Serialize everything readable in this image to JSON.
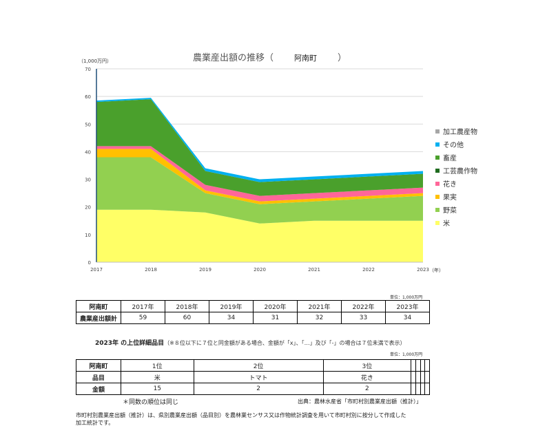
{
  "chart": {
    "title": "農業産出額の推移（",
    "town": "阿南町",
    "title_close": "）",
    "y_unit": "（1,000万円）",
    "x_unit": "（年）"
  },
  "chart_data": {
    "type": "area",
    "stacked": true,
    "x": [
      2017,
      2018,
      2019,
      2020,
      2021,
      2022,
      2023
    ],
    "ylim": [
      0,
      70
    ],
    "yticks": [
      0,
      10,
      20,
      30,
      40,
      50,
      60,
      70
    ],
    "series": [
      {
        "name": "米",
        "color": "#ffff66",
        "values": [
          19,
          19,
          18,
          14,
          15,
          15,
          15
        ]
      },
      {
        "name": "野菜",
        "color": "#92d050",
        "values": [
          19,
          19,
          7,
          7,
          7,
          8,
          9
        ]
      },
      {
        "name": "果実",
        "color": "#ffc000",
        "values": [
          3,
          3,
          1,
          1,
          1,
          1,
          1
        ]
      },
      {
        "name": "花き",
        "color": "#ff6699",
        "values": [
          1,
          1,
          2,
          2,
          2,
          2,
          2
        ]
      },
      {
        "name": "工芸農作物",
        "color": "#1f6b1f",
        "values": [
          0,
          0,
          0,
          0,
          0,
          0,
          0
        ]
      },
      {
        "name": "畜産",
        "color": "#4aa02c",
        "values": [
          16,
          17,
          5,
          5,
          5,
          5,
          5
        ]
      },
      {
        "name": "その他",
        "color": "#00b0f0",
        "values": [
          0.5,
          0.5,
          1,
          1,
          1,
          1,
          1
        ]
      },
      {
        "name": "加工農産物",
        "color": "#a6a6a6",
        "values": [
          0,
          0,
          0,
          0,
          0,
          0,
          0
        ]
      }
    ],
    "legend_position": "right",
    "grid": true
  },
  "table1": {
    "unit_note": "単位：1,000万円",
    "header_label": "阿南町",
    "years": [
      "2017年",
      "2018年",
      "2019年",
      "2020年",
      "2021年",
      "2022年",
      "2023年"
    ],
    "row_label": "農業産出額計",
    "values": [
      "59",
      "60",
      "34",
      "31",
      "32",
      "33",
      "34"
    ]
  },
  "section2": {
    "heading": "2023年 の上位詳細品目",
    "note": "（※８位以下に７位と同金額がある場合、金額が「x」、「…」及び「-」の場合は７位未満で表示）",
    "unit_note": "単位：1,000万円"
  },
  "table2": {
    "header_label": "阿南町",
    "ranks": [
      "1位",
      "2位",
      "3位",
      "",
      "",
      "",
      ""
    ],
    "item_label": "品目",
    "items": [
      "米",
      "トマト",
      "花き",
      "",
      "",
      "",
      ""
    ],
    "amount_label": "金額",
    "amounts": [
      "15",
      "2",
      "2",
      "",
      "",
      "",
      ""
    ]
  },
  "footer": {
    "rank_note": "＊同数の順位は同じ",
    "source": "出典：農林水産省「市町村別農業産出額（推計）」",
    "description_line1": "市町村別農業産出額（推計）は、県別農業産出額（品目別）を農林業センサス又は作物統計調査を用いて市町村別に按分して作成した",
    "description_line2": "加工統計です。"
  }
}
